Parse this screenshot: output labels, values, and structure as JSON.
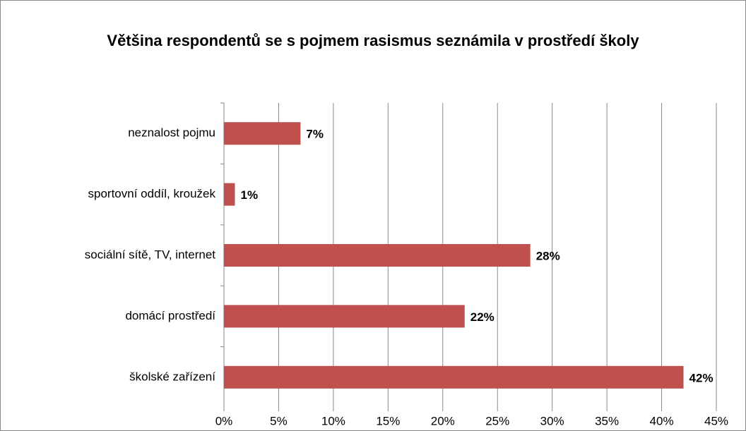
{
  "chart_data": {
    "type": "bar",
    "orientation": "horizontal",
    "title": "Většina respondentů se s pojmem rasismus seznámila v prostředí školy",
    "categories": [
      "neznalost pojmu",
      "sportovní oddíl, kroužek",
      "sociální sítě, TV, internet",
      "domácí prostředí",
      "školské zařízení"
    ],
    "values": [
      7,
      1,
      28,
      22,
      42
    ],
    "value_labels": [
      "7%",
      "1%",
      "28%",
      "22%",
      "42%"
    ],
    "color": "#c0504d",
    "xlim": [
      0,
      45
    ],
    "xticks": [
      {
        "value": 0,
        "label": "0%"
      },
      {
        "value": 5,
        "label": "5%"
      },
      {
        "value": 10,
        "label": "10%"
      },
      {
        "value": 15,
        "label": "15%"
      },
      {
        "value": 20,
        "label": "20%"
      },
      {
        "value": 25,
        "label": "25%"
      },
      {
        "value": 30,
        "label": "30%"
      },
      {
        "value": 35,
        "label": "35%"
      },
      {
        "value": 40,
        "label": "40%"
      },
      {
        "value": 45,
        "label": "45%"
      }
    ],
    "grid": true
  }
}
